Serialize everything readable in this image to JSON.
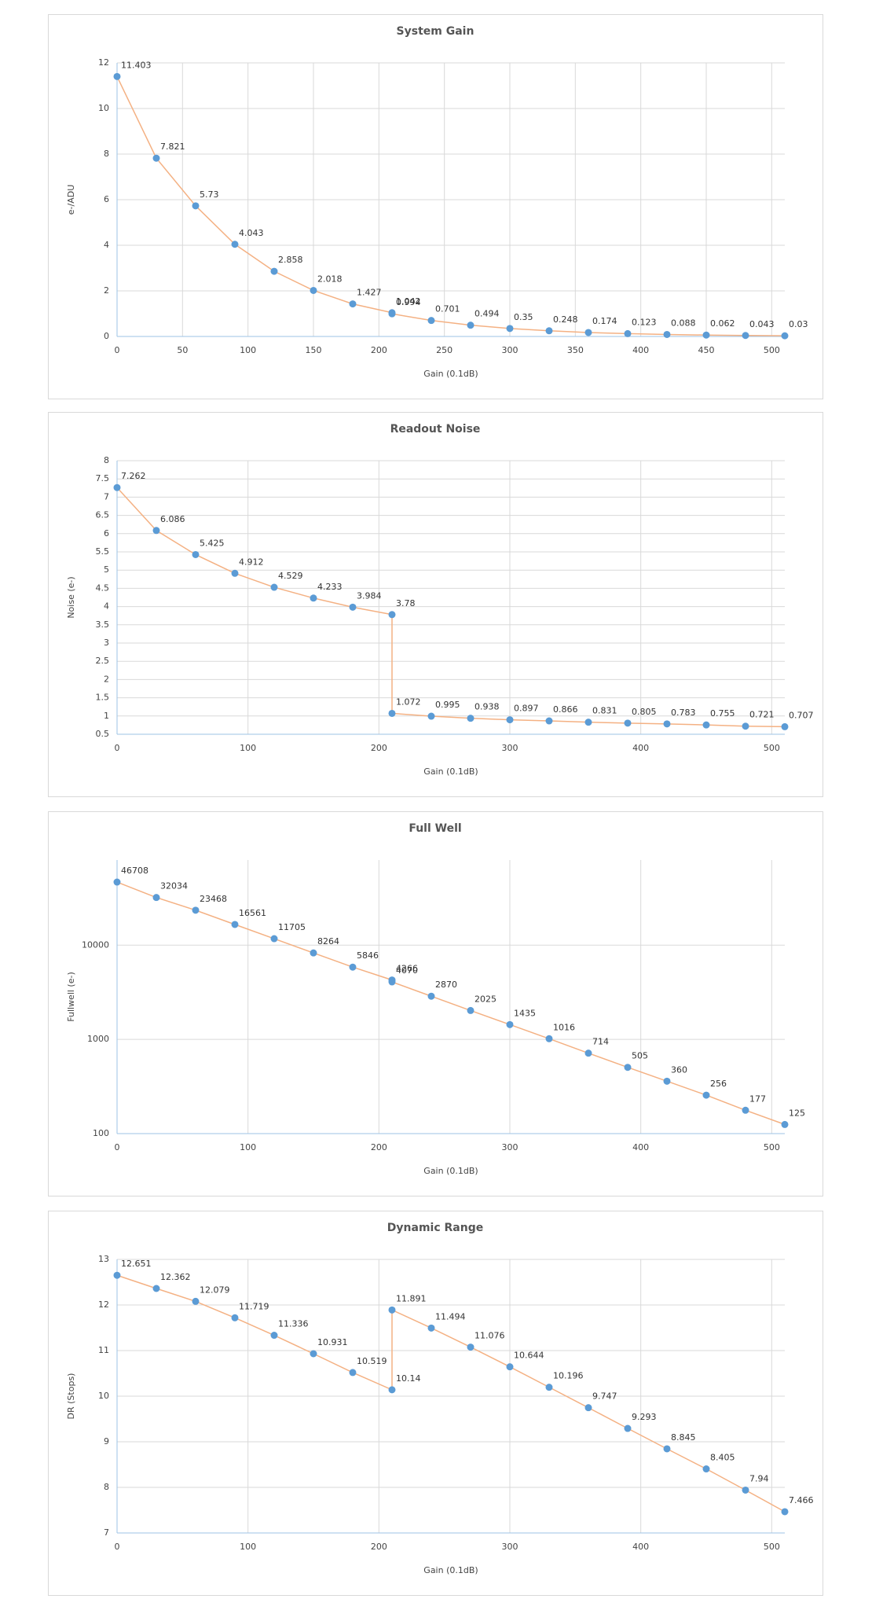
{
  "chart_data": [
    {
      "type": "line",
      "title": "System Gain",
      "x_label": "Gain (0.1dB)",
      "y_label": "e-/ADU",
      "x": [
        0,
        30,
        60,
        90,
        120,
        150,
        180,
        210,
        210,
        240,
        270,
        300,
        330,
        360,
        390,
        420,
        450,
        480,
        510
      ],
      "values": [
        11.403,
        7.821,
        5.73,
        4.043,
        2.858,
        2.018,
        1.427,
        1.042,
        0.994,
        0.701,
        0.494,
        0.35,
        0.248,
        0.174,
        0.123,
        0.088,
        0.062,
        0.043,
        0.03
      ],
      "xlim": [
        0,
        510
      ],
      "xticks": [
        0,
        50,
        100,
        150,
        200,
        250,
        300,
        350,
        400,
        450,
        500
      ],
      "ylim": [
        0,
        12
      ],
      "yticks": [
        0,
        2,
        4,
        6,
        8,
        10,
        12
      ],
      "line_color": "#f4b183",
      "marker_color": "#5b9bd5",
      "grid": true,
      "y_scale": "linear"
    },
    {
      "type": "line",
      "title": "Readout Noise",
      "x_label": "Gain (0.1dB)",
      "y_label": "Noise (e-)",
      "x": [
        0,
        30,
        60,
        90,
        120,
        150,
        180,
        210,
        210,
        240,
        270,
        300,
        330,
        360,
        390,
        420,
        450,
        480,
        510
      ],
      "values": [
        7.262,
        6.086,
        5.425,
        4.912,
        4.529,
        4.233,
        3.984,
        3.78,
        1.072,
        0.995,
        0.938,
        0.897,
        0.866,
        0.831,
        0.805,
        0.783,
        0.755,
        0.721,
        0.707
      ],
      "xlim": [
        0,
        510
      ],
      "xticks": [
        0,
        100,
        200,
        300,
        400,
        500
      ],
      "ylim": [
        0.5,
        8
      ],
      "yticks": [
        0.5,
        1,
        1.5,
        2,
        2.5,
        3,
        3.5,
        4,
        4.5,
        5,
        5.5,
        6,
        6.5,
        7,
        7.5,
        8
      ],
      "line_color": "#f4b183",
      "marker_color": "#5b9bd5",
      "grid": true,
      "y_scale": "linear"
    },
    {
      "type": "line",
      "title": "Full Well",
      "x_label": "Gain (0.1dB)",
      "y_label": "Fullwell (e-)",
      "x": [
        0,
        30,
        60,
        90,
        120,
        150,
        180,
        210,
        210,
        240,
        270,
        300,
        330,
        360,
        390,
        420,
        450,
        480,
        510
      ],
      "values": [
        46708,
        32034,
        23468,
        16561,
        11705,
        8264,
        5846,
        4266,
        4070,
        2870,
        2025,
        1435,
        1016,
        714,
        505,
        360,
        256,
        177,
        125
      ],
      "xlim": [
        0,
        510
      ],
      "xticks": [
        0,
        100,
        200,
        300,
        400,
        500
      ],
      "ylim": [
        100,
        80000
      ],
      "yticks": [
        100,
        1000,
        10000
      ],
      "line_color": "#f4b183",
      "marker_color": "#5b9bd5",
      "grid": true,
      "y_scale": "log"
    },
    {
      "type": "line",
      "title": "Dynamic Range",
      "x_label": "Gain (0.1dB)",
      "y_label": "DR (Stops)",
      "x": [
        0,
        30,
        60,
        90,
        120,
        150,
        180,
        210,
        210,
        240,
        270,
        300,
        330,
        360,
        390,
        420,
        450,
        480,
        510
      ],
      "values": [
        12.651,
        12.362,
        12.079,
        11.719,
        11.336,
        10.931,
        10.519,
        10.14,
        11.891,
        11.494,
        11.076,
        10.644,
        10.196,
        9.747,
        9.293,
        8.845,
        8.405,
        7.94,
        7.466
      ],
      "xlim": [
        0,
        510
      ],
      "xticks": [
        0,
        100,
        200,
        300,
        400,
        500
      ],
      "ylim": [
        7,
        13
      ],
      "yticks": [
        7,
        8,
        9,
        10,
        11,
        12,
        13
      ],
      "line_color": "#f4b183",
      "marker_color": "#5b9bd5",
      "grid": true,
      "y_scale": "linear"
    }
  ]
}
